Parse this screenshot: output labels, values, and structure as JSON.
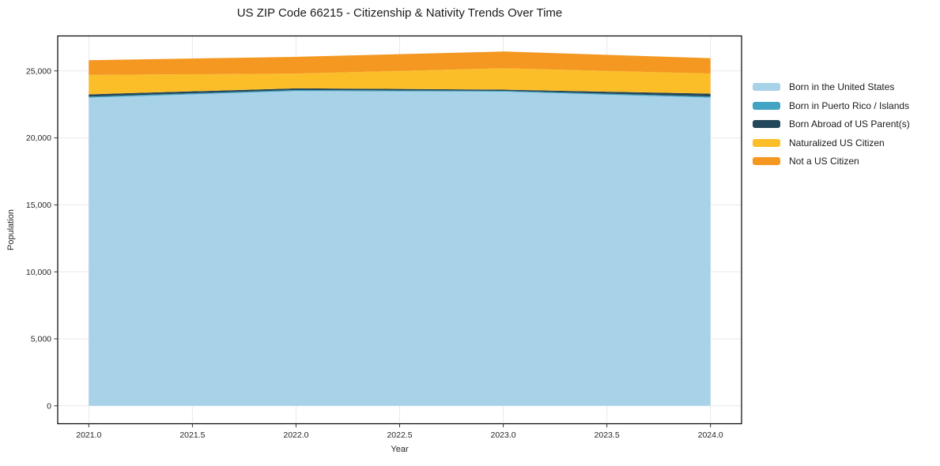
{
  "chart_data": {
    "type": "area",
    "stacked": true,
    "title": "US ZIP Code 66215 - Citizenship & Nativity Trends Over Time",
    "xlabel": "Year",
    "ylabel": "Population",
    "x": [
      2021,
      2022,
      2023,
      2024
    ],
    "series": [
      {
        "name": "Born in the United States",
        "color": "#a8d2e8",
        "values": [
          23000,
          23500,
          23450,
          23000
        ]
      },
      {
        "name": "Born in Puerto Rico / Islands",
        "color": "#42a3c2",
        "values": [
          80,
          70,
          60,
          90
        ]
      },
      {
        "name": "Born Abroad of US Parent(s)",
        "color": "#24485a",
        "values": [
          170,
          130,
          90,
          210
        ]
      },
      {
        "name": "Naturalized US Citizen",
        "color": "#fbbe29",
        "values": [
          1450,
          1100,
          1600,
          1500
        ]
      },
      {
        "name": "Not a US Citizen",
        "color": "#f49821",
        "values": [
          1100,
          1250,
          1250,
          1150
        ]
      }
    ],
    "totals": [
      25800,
      26050,
      26450,
      25950
    ],
    "xlim": [
      2020.85,
      2024.15
    ],
    "ylim": [
      -1340,
      27610
    ],
    "xticks": {
      "values": [
        2021.0,
        2021.5,
        2022.0,
        2022.5,
        2023.0,
        2023.5,
        2024.0
      ],
      "labels": [
        "2021.0",
        "2021.5",
        "2022.0",
        "2022.5",
        "2023.0",
        "2023.5",
        "2024.0"
      ]
    },
    "yticks": {
      "values": [
        0,
        5000,
        10000,
        15000,
        20000,
        25000
      ],
      "labels": [
        "0",
        "5,000",
        "10,000",
        "15,000",
        "20,000",
        "25,000"
      ]
    },
    "grid": true,
    "legend_position": "right"
  },
  "colors": {
    "grid": "#e9e9e9",
    "spine": "#000000",
    "tick": "#333333",
    "background": "#ffffff"
  }
}
